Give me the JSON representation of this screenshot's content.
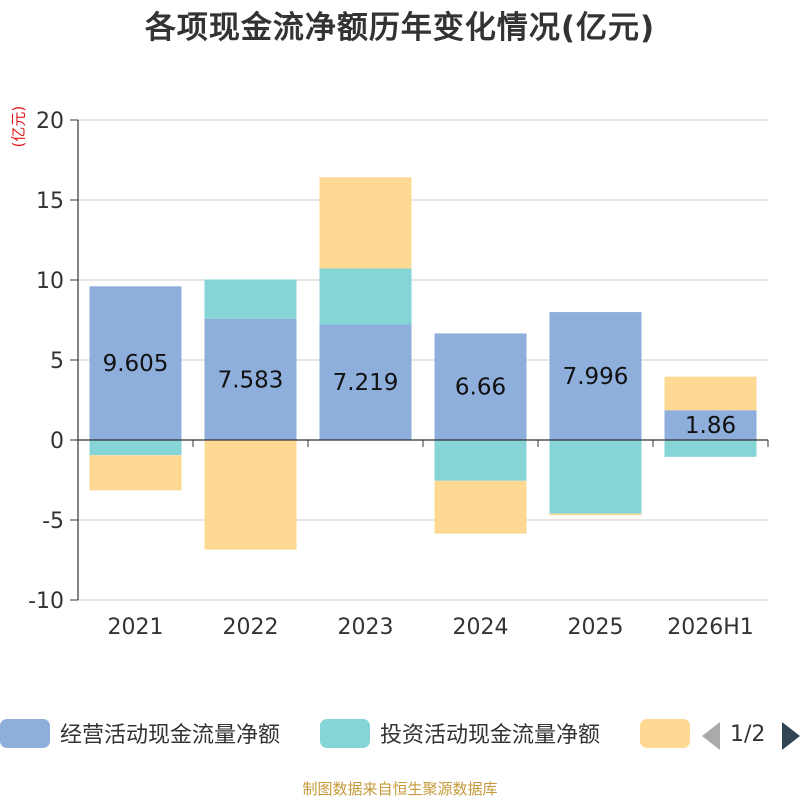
{
  "title": "各项现金流净额历年变化情况(亿元)",
  "unit_label": "(亿元)",
  "source_text": "制图数据来自恒生聚源数据库",
  "legend": {
    "items": [
      {
        "label": "经营活动现金流量净额",
        "color": "#8eaedb"
      },
      {
        "label": "投资活动现金流量净额",
        "color": "#86d5d6"
      },
      {
        "label": "",
        "color": "#fed993"
      }
    ],
    "page_indicator": "1/2"
  },
  "chart_data": {
    "type": "bar",
    "stacked": true,
    "categories": [
      "2021",
      "2022",
      "2023",
      "2024",
      "2025",
      "2026H1"
    ],
    "series": [
      {
        "name": "经营活动现金流量净额",
        "color": "#8eaedb",
        "values": [
          9.605,
          7.583,
          7.219,
          6.66,
          7.996,
          1.86
        ],
        "show_labels": true
      },
      {
        "name": "投资活动现金流量净额",
        "color": "#86d5d6",
        "values": [
          -0.95,
          2.45,
          3.5,
          -2.55,
          -4.6,
          -1.05
        ],
        "show_labels": false
      },
      {
        "color": "#fed993",
        "values": [
          -2.2,
          -6.85,
          5.7,
          -3.3,
          -0.1,
          2.1
        ],
        "show_labels": false
      }
    ],
    "ylim": [
      -10,
      20
    ],
    "yticks": [
      20,
      15,
      10,
      5,
      0,
      -5,
      -10
    ],
    "grid": true
  }
}
